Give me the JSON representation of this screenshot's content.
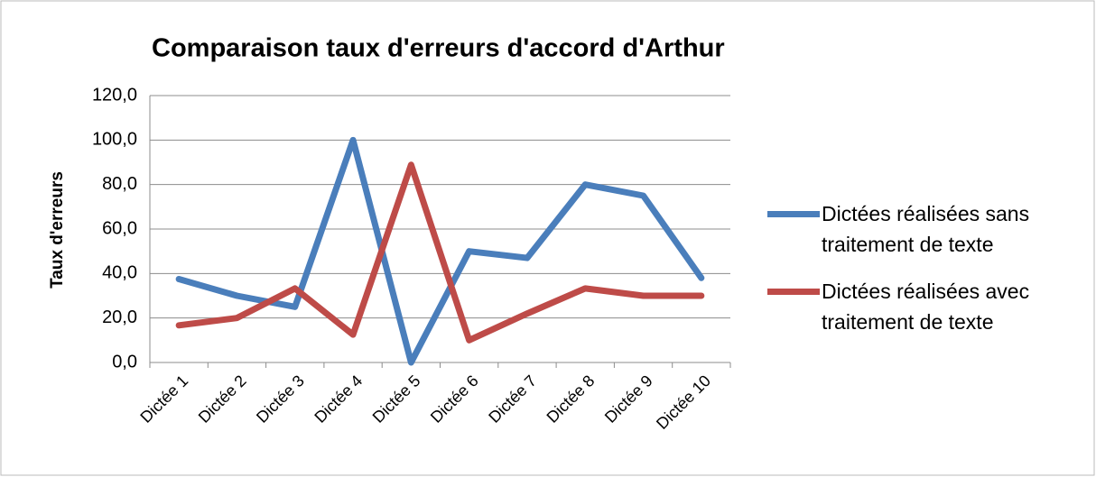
{
  "chart_data": {
    "type": "line",
    "title": "Comparaison taux d'erreurs d'accord d'Arthur",
    "y_label": "Taux d'erreurs",
    "categories": [
      "Dictée 1",
      "Dictée 2",
      "Dictée 3",
      "Dictée 4",
      "Dictée 5",
      "Dictée 6",
      "Dictée 7",
      "Dictée 8",
      "Dictée 9",
      "Dictée 10"
    ],
    "series": [
      {
        "name": "Dictées réalisées sans traitement de texte",
        "color": "#4a7ebb",
        "values": [
          37.5,
          30,
          25,
          100,
          0,
          50,
          47,
          80,
          75,
          38
        ]
      },
      {
        "name": "Dictées réalisées avec traitement de texte",
        "color": "#be4b48",
        "values": [
          16.7,
          20,
          33.3,
          12.5,
          88.9,
          10,
          22,
          33.3,
          30,
          30
        ]
      }
    ],
    "ylim": [
      0,
      120
    ],
    "yticks": [
      {
        "value": 0,
        "label": "0,0"
      },
      {
        "value": 20,
        "label": "20,0"
      },
      {
        "value": 40,
        "label": "40,0"
      },
      {
        "value": 60,
        "label": "60,0"
      },
      {
        "value": 80,
        "label": "80,0"
      },
      {
        "value": 100,
        "label": "100,0"
      },
      {
        "value": 120,
        "label": "120,0"
      }
    ],
    "grid": true,
    "legend": "right"
  }
}
